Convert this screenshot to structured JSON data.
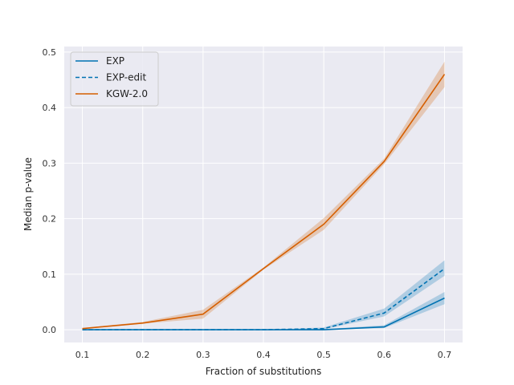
{
  "chart_data": {
    "type": "line",
    "title": "",
    "xlabel": "Fraction of substitutions",
    "ylabel": "Median p-value",
    "x": [
      0.1,
      0.2,
      0.3,
      0.4,
      0.5,
      0.6,
      0.7
    ],
    "xlim": [
      0.07,
      0.73
    ],
    "ylim": [
      -0.023,
      0.51
    ],
    "xticks": [
      "0.1",
      "0.2",
      "0.3",
      "0.4",
      "0.5",
      "0.6",
      "0.7"
    ],
    "yticks": [
      "0.0",
      "0.1",
      "0.2",
      "0.3",
      "0.4",
      "0.5"
    ],
    "grid": true,
    "legend_position": "top-left",
    "series": [
      {
        "name": "EXP",
        "color": "#0072b2",
        "style": "solid",
        "values": [
          0.0,
          0.0,
          0.0,
          0.0,
          0.0,
          0.005,
          0.057
        ],
        "lower": [
          0.0,
          0.0,
          0.0,
          0.0,
          0.0,
          0.003,
          0.046
        ],
        "upper": [
          0.0,
          0.0,
          0.0,
          0.0,
          0.001,
          0.008,
          0.068
        ]
      },
      {
        "name": "EXP-edit",
        "color": "#0072b2",
        "style": "dashed",
        "values": [
          0.0,
          0.0,
          0.0,
          0.0,
          0.002,
          0.03,
          0.11
        ],
        "lower": [
          0.0,
          0.0,
          0.0,
          0.0,
          0.001,
          0.024,
          0.097
        ],
        "upper": [
          0.0,
          0.0,
          0.0,
          0.0,
          0.004,
          0.038,
          0.125
        ]
      },
      {
        "name": "KGW-2.0",
        "color": "#d55e00",
        "style": "solid",
        "values": [
          0.002,
          0.012,
          0.028,
          0.11,
          0.19,
          0.303,
          0.46
        ],
        "lower": [
          0.001,
          0.011,
          0.02,
          0.108,
          0.18,
          0.298,
          0.437
        ],
        "upper": [
          0.003,
          0.014,
          0.036,
          0.112,
          0.201,
          0.308,
          0.483
        ]
      }
    ]
  }
}
